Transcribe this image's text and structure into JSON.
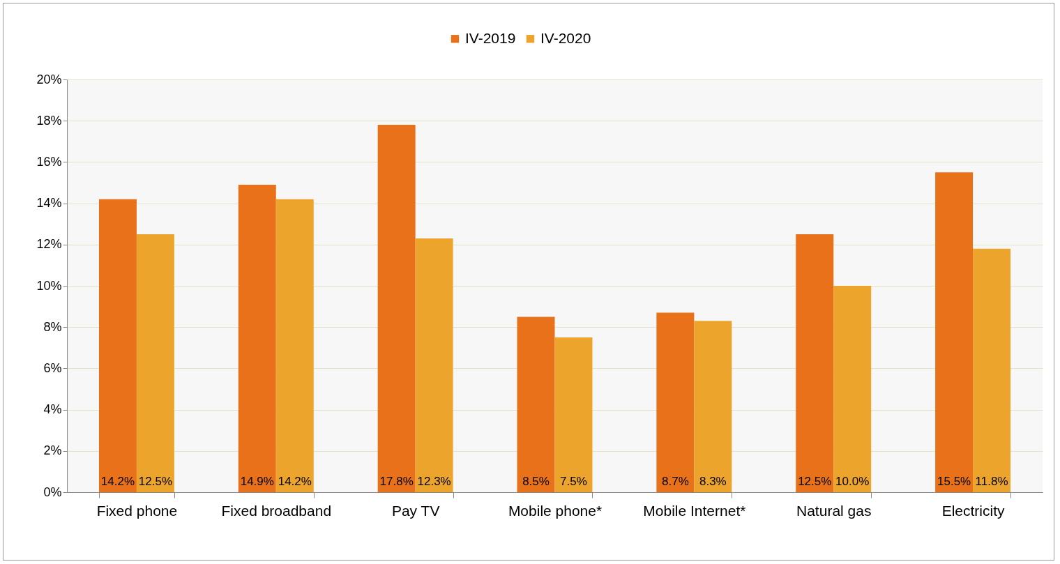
{
  "chart_data": {
    "type": "bar",
    "categories": [
      "Fixed phone",
      "Fixed broadband",
      "Pay TV",
      "Mobile phone*",
      "Mobile Internet*",
      "Natural gas",
      "Electricity"
    ],
    "series": [
      {
        "name": "IV-2019",
        "color": "#e8711a",
        "values": [
          14.2,
          14.9,
          17.8,
          8.5,
          8.7,
          12.5,
          15.5
        ],
        "value_labels": [
          "14.2%",
          "14.9%",
          "17.8%",
          "8.5%",
          "8.7%",
          "12.5%",
          "15.5%"
        ]
      },
      {
        "name": "IV-2020",
        "color": "#eda42c",
        "values": [
          12.5,
          14.2,
          12.3,
          7.5,
          8.3,
          10.0,
          11.8
        ],
        "value_labels": [
          "12.5%",
          "14.2%",
          "12.3%",
          "7.5%",
          "8.3%",
          "10.0%",
          "11.8%"
        ]
      }
    ],
    "ylim": [
      0,
      20
    ],
    "yticks": [
      {
        "value": 0,
        "label": "0%"
      },
      {
        "value": 2,
        "label": "2%"
      },
      {
        "value": 4,
        "label": "4%"
      },
      {
        "value": 6,
        "label": "6%"
      },
      {
        "value": 8,
        "label": "8%"
      },
      {
        "value": 10,
        "label": "10%"
      },
      {
        "value": 12,
        "label": "12%"
      },
      {
        "value": 14,
        "label": "14%"
      },
      {
        "value": 16,
        "label": "16%"
      },
      {
        "value": 18,
        "label": "18%"
      },
      {
        "value": 20,
        "label": "20%"
      }
    ],
    "grid": "y",
    "legend": "top"
  }
}
